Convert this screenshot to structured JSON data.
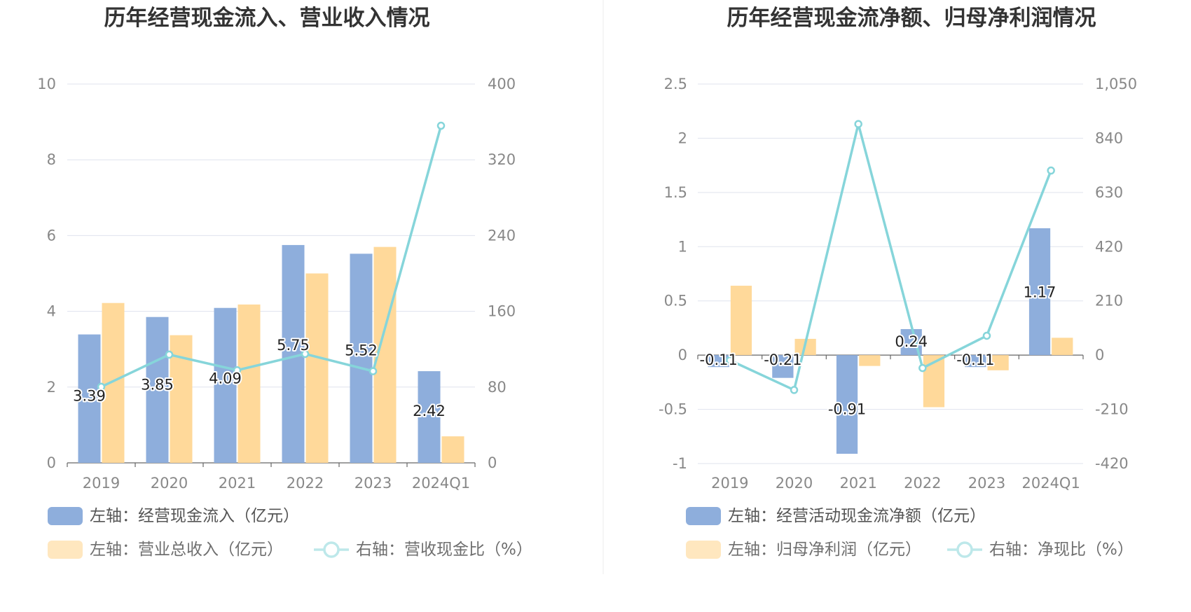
{
  "chart_data": [
    {
      "type": "bar",
      "title": "历年经营现金流入、营业收入情况",
      "categories": [
        "2019",
        "2020",
        "2021",
        "2022",
        "2023",
        "2024Q1"
      ],
      "left_axis": {
        "ylim": [
          0,
          10
        ],
        "ticks": [
          "0",
          "2",
          "4",
          "6",
          "8",
          "10"
        ]
      },
      "right_axis": {
        "ylim": [
          0,
          400
        ],
        "ticks": [
          "0",
          "80",
          "160",
          "240",
          "320",
          "400"
        ]
      },
      "series": [
        {
          "name": "左轴：经营现金流入（亿元）",
          "type": "bar",
          "axis": "left",
          "color": "#8eaedc",
          "values": [
            3.39,
            3.85,
            4.09,
            5.75,
            5.52,
            2.42
          ],
          "labels": [
            "3.39",
            "3.85",
            "4.09",
            "5.75",
            "5.52",
            "2.42"
          ]
        },
        {
          "name": "左轴：营业总收入（亿元）",
          "type": "bar",
          "axis": "left",
          "color": "#ffd99a",
          "values": [
            4.22,
            3.37,
            4.18,
            5.0,
            5.7,
            0.7
          ]
        },
        {
          "name": "右轴：营收现金比（%）",
          "type": "line",
          "axis": "right",
          "color": "#86d5da",
          "values": [
            80.3,
            114.3,
            97.8,
            115.0,
            96.8,
            356.0
          ]
        }
      ],
      "legend_position": "bottom-left",
      "grid": true
    },
    {
      "type": "bar",
      "title": "历年经营现金流净额、归母净利润情况",
      "categories": [
        "2019",
        "2020",
        "2021",
        "2022",
        "2023",
        "2024Q1"
      ],
      "left_axis": {
        "ylim": [
          -1,
          2.5
        ],
        "ticks": [
          "-1",
          "-0.5",
          "0",
          "0.5",
          "1",
          "1.5",
          "2",
          "2.5"
        ]
      },
      "right_axis": {
        "ylim": [
          -420,
          1050
        ],
        "ticks": [
          "-420",
          "-210",
          "0",
          "210",
          "420",
          "630",
          "840",
          "1,050"
        ]
      },
      "series": [
        {
          "name": "左轴：经营活动现金流净额（亿元）",
          "type": "bar",
          "axis": "left",
          "color": "#8eaedc",
          "values": [
            -0.11,
            -0.21,
            -0.91,
            0.24,
            -0.11,
            1.17
          ],
          "labels": [
            "-0.11",
            "-0.21",
            "-0.91",
            "0.24",
            "-0.11",
            "1.17"
          ]
        },
        {
          "name": "左轴：归母净利润（亿元）",
          "type": "bar",
          "axis": "left",
          "color": "#ffd99a",
          "values": [
            0.64,
            0.15,
            -0.1,
            -0.48,
            -0.14,
            0.16
          ]
        },
        {
          "name": "右轴：净现比（%）",
          "type": "line",
          "axis": "right",
          "color": "#86d5da",
          "values": [
            -20,
            -135,
            895,
            -50,
            75,
            715
          ]
        }
      ],
      "legend_position": "bottom-left",
      "grid": true
    }
  ]
}
